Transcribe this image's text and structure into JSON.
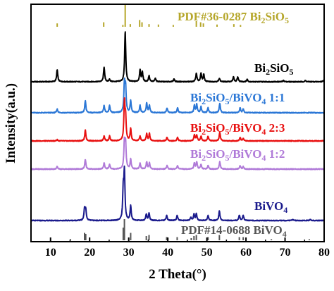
{
  "chart_data": {
    "type": "line",
    "xlabel": "2 Theta(°)",
    "ylabel": "Intensity(a.u.)",
    "xlim": [
      5,
      80
    ],
    "xticks": [
      10,
      20,
      30,
      40,
      50,
      60,
      70,
      80
    ],
    "yticks": "none",
    "grid": false,
    "series": [
      {
        "name": "PDF#36-0287 Bi2SiO5",
        "color": "#b5a62a",
        "style": "sticks",
        "peaks": [
          [
            11.7,
            0.15
          ],
          [
            23.6,
            0.2
          ],
          [
            28.5,
            0.08
          ],
          [
            29.1,
            1.0
          ],
          [
            30.4,
            0.12
          ],
          [
            32.8,
            0.3
          ],
          [
            33.4,
            0.2
          ],
          [
            35.2,
            0.12
          ],
          [
            37.6,
            0.1
          ],
          [
            41.4,
            0.08
          ],
          [
            47.3,
            0.25
          ],
          [
            48.4,
            0.2
          ],
          [
            49.1,
            0.15
          ],
          [
            52.6,
            0.1
          ],
          [
            56.9,
            0.12
          ],
          [
            58.6,
            0.08
          ]
        ]
      },
      {
        "name": "Bi2SiO5",
        "color": "#000000",
        "style": "pattern",
        "peaks": [
          [
            11.7,
            0.5
          ],
          [
            23.7,
            0.62
          ],
          [
            25.1,
            0.1
          ],
          [
            29.1,
            2.1
          ],
          [
            32.9,
            0.5
          ],
          [
            33.5,
            0.4
          ],
          [
            35.2,
            0.25
          ],
          [
            36.8,
            0.15
          ],
          [
            41.6,
            0.12
          ],
          [
            47.3,
            0.35
          ],
          [
            48.5,
            0.35
          ],
          [
            49.2,
            0.3
          ],
          [
            53.2,
            0.15
          ],
          [
            56.8,
            0.2
          ],
          [
            57.9,
            0.2
          ],
          [
            60.3,
            0.1
          ],
          [
            69.6,
            0.05
          ],
          [
            75.2,
            0.05
          ],
          [
            79.8,
            0.05
          ]
        ]
      },
      {
        "name": "Bi2SiO5/BiVO4 1:1",
        "color": "#2b77d6",
        "style": "pattern",
        "peaks": [
          [
            11.7,
            0.15
          ],
          [
            18.9,
            0.5
          ],
          [
            23.7,
            0.3
          ],
          [
            25.1,
            0.3
          ],
          [
            28.9,
            1.2
          ],
          [
            29.2,
            1.0
          ],
          [
            30.5,
            0.5
          ],
          [
            32.9,
            0.3
          ],
          [
            34.6,
            0.4
          ],
          [
            35.3,
            0.3
          ],
          [
            39.8,
            0.2
          ],
          [
            42.5,
            0.2
          ],
          [
            46.8,
            0.3
          ],
          [
            47.4,
            0.35
          ],
          [
            48.5,
            0.25
          ],
          [
            50.3,
            0.2
          ],
          [
            53.3,
            0.4
          ],
          [
            58.5,
            0.2
          ],
          [
            59.3,
            0.15
          ]
        ]
      },
      {
        "name": "Bi2SiO5/BiVO4 2:3",
        "color": "#e81010",
        "style": "pattern",
        "peaks": [
          [
            11.7,
            0.05
          ],
          [
            18.9,
            0.45
          ],
          [
            23.7,
            0.2
          ],
          [
            25.1,
            0.2
          ],
          [
            28.9,
            1.6
          ],
          [
            29.2,
            0.9
          ],
          [
            30.5,
            0.5
          ],
          [
            32.9,
            0.2
          ],
          [
            34.6,
            0.3
          ],
          [
            35.3,
            0.3
          ],
          [
            39.8,
            0.15
          ],
          [
            42.5,
            0.15
          ],
          [
            46.8,
            0.25
          ],
          [
            47.4,
            0.25
          ],
          [
            48.5,
            0.2
          ],
          [
            50.3,
            0.2
          ],
          [
            53.3,
            0.35
          ],
          [
            58.5,
            0.15
          ],
          [
            59.3,
            0.1
          ]
        ]
      },
      {
        "name": "Bi2SiO5/BiVO4 1:2",
        "color": "#b07ad8",
        "style": "pattern",
        "peaks": [
          [
            11.7,
            0.1
          ],
          [
            18.9,
            0.4
          ],
          [
            23.7,
            0.25
          ],
          [
            25.1,
            0.2
          ],
          [
            28.9,
            1.1
          ],
          [
            29.2,
            1.0
          ],
          [
            30.5,
            0.4
          ],
          [
            32.9,
            0.25
          ],
          [
            34.6,
            0.3
          ],
          [
            35.3,
            0.25
          ],
          [
            39.8,
            0.15
          ],
          [
            42.5,
            0.15
          ],
          [
            46.8,
            0.25
          ],
          [
            47.4,
            0.3
          ],
          [
            48.5,
            0.2
          ],
          [
            50.3,
            0.15
          ],
          [
            53.3,
            0.3
          ],
          [
            58.5,
            0.15
          ],
          [
            59.3,
            0.1
          ]
        ]
      },
      {
        "name": "BiVO4",
        "color": "#1a1a8c",
        "style": "pattern",
        "peaks": [
          [
            18.7,
            0.55
          ],
          [
            19.0,
            0.5
          ],
          [
            28.6,
            1.4
          ],
          [
            28.9,
            2.2
          ],
          [
            30.5,
            0.7
          ],
          [
            34.5,
            0.3
          ],
          [
            35.2,
            0.35
          ],
          [
            39.7,
            0.25
          ],
          [
            42.4,
            0.25
          ],
          [
            45.9,
            0.15
          ],
          [
            46.7,
            0.3
          ],
          [
            47.3,
            0.3
          ],
          [
            50.3,
            0.25
          ],
          [
            53.2,
            0.45
          ],
          [
            58.3,
            0.25
          ],
          [
            59.3,
            0.25
          ],
          [
            72.0,
            0.05
          ],
          [
            76.5,
            0.05
          ]
        ]
      },
      {
        "name": "PDF#14-0688 BiVO4",
        "color": "#555555",
        "style": "sticks",
        "peaks": [
          [
            15.1,
            0.05
          ],
          [
            18.7,
            0.35
          ],
          [
            19.0,
            0.3
          ],
          [
            28.6,
            0.6
          ],
          [
            28.9,
            1.0
          ],
          [
            30.5,
            0.35
          ],
          [
            34.5,
            0.2
          ],
          [
            35.2,
            0.25
          ],
          [
            39.7,
            0.15
          ],
          [
            40.0,
            0.1
          ],
          [
            42.4,
            0.15
          ],
          [
            46.0,
            0.1
          ],
          [
            46.7,
            0.2
          ],
          [
            47.3,
            0.25
          ],
          [
            50.3,
            0.15
          ],
          [
            53.2,
            0.25
          ],
          [
            58.3,
            0.15
          ],
          [
            59.3,
            0.15
          ],
          [
            66.5,
            0.05
          ],
          [
            70.0,
            0.05
          ],
          [
            76.2,
            0.05
          ]
        ]
      }
    ]
  },
  "labels": {
    "pdf_bi2sio5": {
      "a": "PDF#36-0287 Bi",
      "b": "2",
      "c": "SiO",
      "d": "5"
    },
    "bi2sio5": {
      "a": "Bi",
      "b": "2",
      "c": "SiO",
      "d": "5"
    },
    "ratio_1_1": {
      "a": "Bi",
      "b": "2",
      "c": "SiO",
      "d": "5",
      "e": "/BiVO",
      "f": "4",
      "g": " 1:1"
    },
    "ratio_2_3": {
      "a": "Bi",
      "b": "2",
      "c": "SiO",
      "d": "5",
      "e": "/BiVO",
      "f": "4",
      "g": " 2:3"
    },
    "ratio_1_2": {
      "a": "Bi",
      "b": "2",
      "c": "SiO",
      "d": "5",
      "e": "/BiVO",
      "f": "4",
      "g": " 1:2"
    },
    "bivo4": {
      "a": "BiVO",
      "b": "4"
    },
    "pdf_bivo4": {
      "a": "PDF#14-0688 BiVO",
      "b": "4"
    }
  }
}
